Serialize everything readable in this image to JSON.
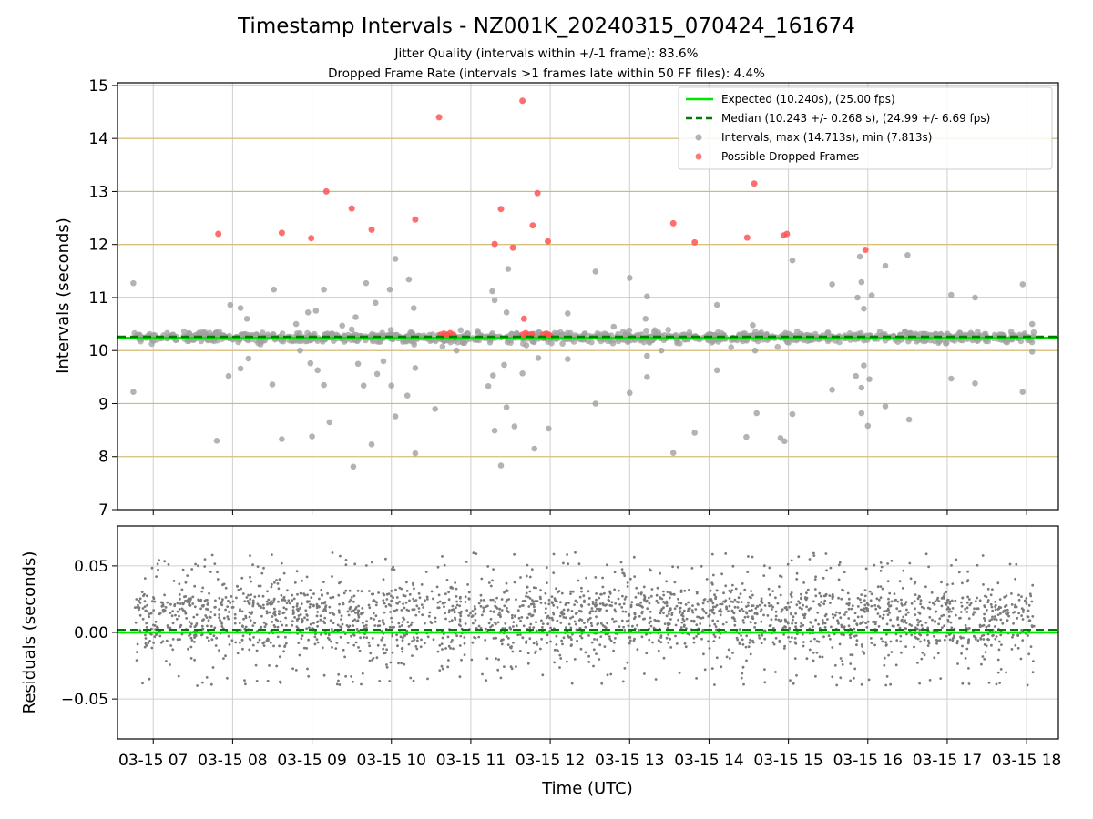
{
  "chart_data": {
    "type": "scatter",
    "title": "Timestamp Intervals - NZ001K_20240315_070424_161674",
    "subtitle_lines": [
      "Jitter Quality (intervals within +/-1 frame): 83.6%",
      "Dropped Frame Rate (intervals >1 frames late within 50 FF files): 4.4%"
    ],
    "xlabel": "Time (UTC)",
    "x_range_hours": [
      6.55,
      18.4
    ],
    "x_ticks": [
      {
        "value": 7,
        "label": "03-15 07"
      },
      {
        "value": 8,
        "label": "03-15 08"
      },
      {
        "value": 9,
        "label": "03-15 09"
      },
      {
        "value": 10,
        "label": "03-15 10"
      },
      {
        "value": 11,
        "label": "03-15 11"
      },
      {
        "value": 12,
        "label": "03-15 12"
      },
      {
        "value": 13,
        "label": "03-15 13"
      },
      {
        "value": 14,
        "label": "03-15 14"
      },
      {
        "value": 15,
        "label": "03-15 15"
      },
      {
        "value": 16,
        "label": "03-15 16"
      },
      {
        "value": 17,
        "label": "03-15 17"
      },
      {
        "value": 18,
        "label": "03-15 18"
      }
    ],
    "top": {
      "ylabel": "Intervals (seconds)",
      "ylim": [
        7,
        15.05
      ],
      "y_ticks": [
        7,
        8,
        9,
        10,
        11,
        12,
        13,
        14,
        15
      ],
      "grid": true,
      "horizontal_ref_lines": [
        8,
        9,
        10,
        11,
        12,
        13,
        14,
        15
      ],
      "horizontal_ref_color": "#d4b96a",
      "expected": 10.24,
      "median": 10.243,
      "colors": {
        "expected": "#00e600",
        "median": "#007a00",
        "interval": "#a0a0a0",
        "dropped": "#ff5555"
      },
      "legend": {
        "position": "top-right",
        "entries": [
          {
            "kind": "line",
            "label": "Expected (10.240s), (25.00 fps)"
          },
          {
            "kind": "dashed",
            "label": "Median (10.243 +/- 0.268 s), (24.99 +/- 6.69 fps)"
          },
          {
            "kind": "dot-gray",
            "label": "Intervals, max (14.713s), min (7.813s)"
          },
          {
            "kind": "dot-red",
            "label": "Possible Dropped Frames"
          }
        ]
      },
      "dropped_points": [
        [
          7.82,
          12.2
        ],
        [
          8.62,
          12.22
        ],
        [
          8.99,
          12.12
        ],
        [
          9.18,
          13.0
        ],
        [
          9.5,
          12.68
        ],
        [
          9.75,
          12.28
        ],
        [
          10.3,
          12.47
        ],
        [
          10.6,
          14.4
        ],
        [
          11.3,
          12.01
        ],
        [
          11.38,
          12.67
        ],
        [
          11.53,
          11.94
        ],
        [
          11.65,
          14.71
        ],
        [
          11.78,
          12.36
        ],
        [
          11.84,
          12.97
        ],
        [
          11.97,
          12.06
        ],
        [
          13.55,
          12.4
        ],
        [
          13.82,
          12.04
        ],
        [
          14.48,
          12.13
        ],
        [
          14.57,
          13.15
        ],
        [
          14.94,
          12.17
        ],
        [
          14.98,
          12.2
        ],
        [
          15.97,
          11.9
        ],
        [
          11.67,
          10.6
        ],
        [
          10.62,
          10.3
        ],
        [
          10.64,
          10.25
        ],
        [
          10.66,
          10.32
        ],
        [
          10.68,
          10.27
        ],
        [
          10.7,
          10.3
        ],
        [
          10.72,
          10.26
        ],
        [
          10.74,
          10.33
        ],
        [
          10.76,
          10.28
        ],
        [
          10.78,
          10.3
        ],
        [
          10.8,
          10.25
        ],
        [
          11.65,
          10.3
        ],
        [
          11.67,
          10.25
        ],
        [
          11.69,
          10.33
        ],
        [
          11.71,
          10.27
        ],
        [
          11.73,
          10.3
        ],
        [
          11.75,
          10.26
        ],
        [
          11.77,
          10.31
        ],
        [
          11.91,
          10.3
        ],
        [
          11.93,
          10.25
        ],
        [
          11.95,
          10.32
        ],
        [
          11.97,
          10.27
        ],
        [
          11.99,
          10.29
        ],
        [
          12.01,
          10.26
        ]
      ],
      "outlier_points": [
        [
          6.75,
          11.27
        ],
        [
          6.75,
          9.22
        ],
        [
          7.8,
          8.3
        ],
        [
          7.95,
          9.52
        ],
        [
          7.97,
          10.86
        ],
        [
          8.1,
          10.8
        ],
        [
          8.1,
          9.66
        ],
        [
          8.18,
          10.6
        ],
        [
          8.2,
          9.85
        ],
        [
          8.5,
          9.36
        ],
        [
          8.52,
          11.15
        ],
        [
          8.62,
          8.33
        ],
        [
          8.8,
          10.5
        ],
        [
          8.85,
          10.0
        ],
        [
          8.95,
          10.72
        ],
        [
          8.98,
          9.76
        ],
        [
          9.0,
          8.38
        ],
        [
          9.05,
          10.75
        ],
        [
          9.07,
          9.63
        ],
        [
          9.15,
          9.35
        ],
        [
          9.15,
          11.15
        ],
        [
          9.22,
          8.65
        ],
        [
          9.38,
          10.47
        ],
        [
          9.52,
          7.81
        ],
        [
          9.55,
          10.63
        ],
        [
          9.58,
          9.75
        ],
        [
          9.65,
          9.34
        ],
        [
          9.68,
          11.27
        ],
        [
          9.75,
          8.23
        ],
        [
          9.8,
          10.9
        ],
        [
          9.82,
          9.56
        ],
        [
          9.9,
          9.8
        ],
        [
          9.98,
          11.15
        ],
        [
          10.0,
          9.34
        ],
        [
          10.05,
          8.76
        ],
        [
          10.05,
          11.73
        ],
        [
          10.2,
          9.15
        ],
        [
          10.22,
          11.34
        ],
        [
          10.3,
          8.06
        ],
        [
          10.28,
          10.8
        ],
        [
          10.3,
          9.67
        ],
        [
          10.55,
          8.9
        ],
        [
          10.82,
          10.0
        ],
        [
          11.22,
          9.33
        ],
        [
          11.27,
          11.12
        ],
        [
          11.28,
          9.53
        ],
        [
          11.3,
          10.95
        ],
        [
          11.3,
          8.49
        ],
        [
          11.38,
          7.83
        ],
        [
          11.42,
          9.73
        ],
        [
          11.45,
          10.72
        ],
        [
          11.47,
          11.54
        ],
        [
          11.45,
          8.93
        ],
        [
          11.55,
          8.57
        ],
        [
          11.65,
          9.57
        ],
        [
          11.7,
          10.1
        ],
        [
          11.8,
          8.15
        ],
        [
          11.85,
          9.86
        ],
        [
          11.98,
          8.53
        ],
        [
          12.22,
          9.84
        ],
        [
          12.22,
          10.7
        ],
        [
          12.57,
          11.49
        ],
        [
          12.57,
          9.0
        ],
        [
          13.0,
          11.37
        ],
        [
          13.0,
          9.2
        ],
        [
          13.2,
          10.6
        ],
        [
          13.22,
          9.9
        ],
        [
          13.22,
          9.5
        ],
        [
          13.22,
          11.02
        ],
        [
          13.4,
          10.0
        ],
        [
          13.55,
          8.07
        ],
        [
          13.82,
          8.45
        ],
        [
          14.1,
          9.63
        ],
        [
          14.1,
          10.86
        ],
        [
          14.47,
          8.37
        ],
        [
          14.55,
          10.48
        ],
        [
          14.58,
          10.0
        ],
        [
          14.6,
          8.82
        ],
        [
          14.9,
          8.35
        ],
        [
          14.95,
          8.29
        ],
        [
          15.05,
          8.8
        ],
        [
          15.05,
          11.7
        ],
        [
          15.55,
          11.25
        ],
        [
          15.55,
          9.26
        ],
        [
          15.85,
          9.52
        ],
        [
          15.87,
          11.0
        ],
        [
          15.9,
          11.77
        ],
        [
          15.92,
          9.3
        ],
        [
          15.95,
          10.79
        ],
        [
          15.95,
          9.72
        ],
        [
          15.92,
          11.29
        ],
        [
          15.92,
          8.82
        ],
        [
          16.0,
          8.58
        ],
        [
          16.02,
          9.46
        ],
        [
          16.05,
          11.04
        ],
        [
          16.22,
          8.95
        ],
        [
          16.22,
          11.6
        ],
        [
          16.5,
          11.8
        ],
        [
          16.52,
          8.7
        ],
        [
          17.05,
          9.47
        ],
        [
          17.05,
          11.05
        ],
        [
          17.35,
          9.38
        ],
        [
          17.35,
          11.0
        ],
        [
          17.95,
          11.25
        ],
        [
          17.95,
          9.22
        ],
        [
          18.07,
          10.5
        ],
        [
          18.07,
          9.98
        ],
        [
          9.5,
          10.4
        ],
        [
          10.9,
          10.15
        ],
        [
          12.8,
          10.45
        ],
        [
          15.0,
          10.15
        ]
      ]
    },
    "bottom": {
      "ylabel": "Residuals (seconds)",
      "ylim": [
        -0.08,
        0.08
      ],
      "y_ticks": [
        -0.05,
        0.0,
        0.05
      ],
      "y_tick_labels": [
        "−0.05",
        "0.00",
        "0.05"
      ],
      "grid": true,
      "zero_line_color": "#00e600",
      "median_offset": 0.002,
      "point_color": "#7a7a7a"
    }
  }
}
